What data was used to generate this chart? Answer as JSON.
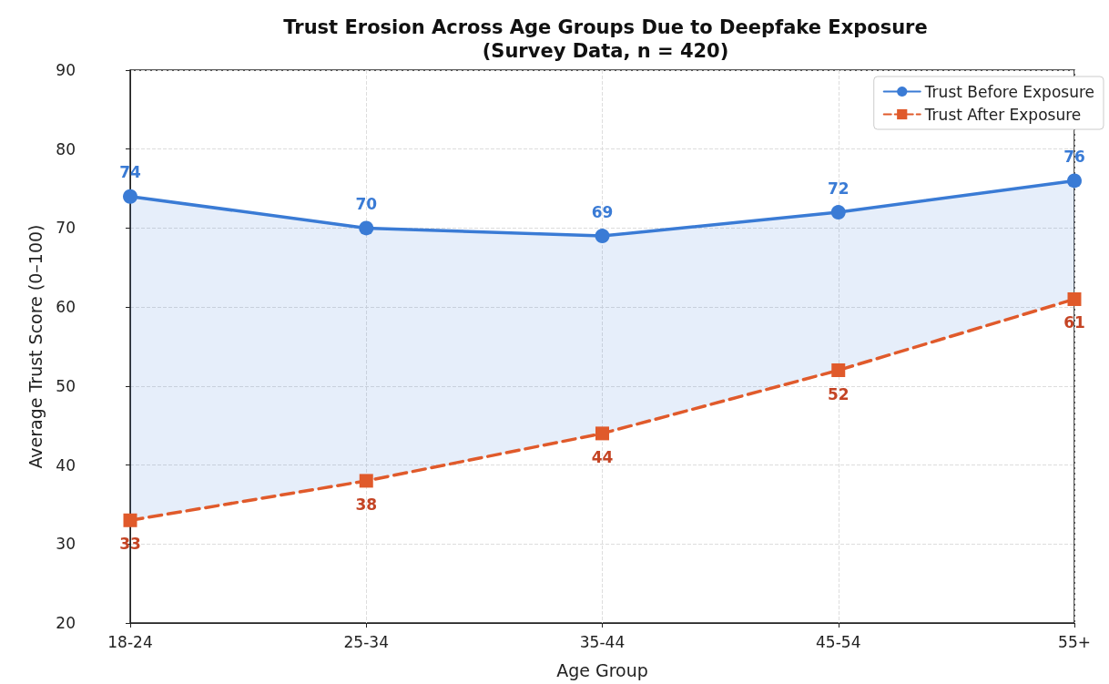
{
  "chart_data": {
    "type": "line",
    "title": "Trust Erosion Across Age Groups Due to Deepfake Exposure\n(Survey Data, n = 420)",
    "xlabel": "Age Group",
    "ylabel": "Average Trust Score (0–100)",
    "categories": [
      "18-24",
      "25-34",
      "35-44",
      "45-54",
      "55+"
    ],
    "series": [
      {
        "name": "Trust Before Exposure",
        "color": "#3a7bd5",
        "values": [
          74,
          70,
          69,
          72,
          76
        ],
        "marker": "circle",
        "line_style": "solid",
        "lower": [
          33,
          38,
          44,
          52,
          61
        ],
        "upper": [
          74,
          70,
          69,
          72,
          76
        ]
      },
      {
        "name": "Trust After Exposure",
        "color": "#e05a2b",
        "values": [
          33,
          38,
          44,
          52,
          61
        ],
        "marker": "square",
        "line_style": "dashed"
      }
    ],
    "ylim": [
      20,
      90
    ],
    "yticks": [
      20,
      30,
      40,
      50,
      60,
      70,
      80,
      90
    ],
    "grid": true,
    "legend": "top right",
    "data_labels": true
  }
}
